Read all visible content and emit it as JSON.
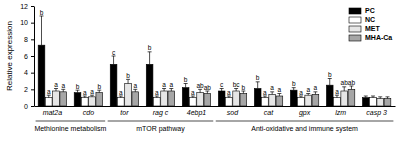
{
  "chart_data": {
    "type": "bar",
    "y_label": "Relative expression",
    "categories": [
      "mat2a",
      "cdo",
      "tor",
      "rag c",
      "4ebp1",
      "sod",
      "cat",
      "gpx",
      "lzm",
      "casp 3"
    ],
    "series": [
      {
        "name": "PC",
        "color": "#000000",
        "values": [
          7.3,
          1.6,
          5.0,
          5.0,
          2.2,
          1.8,
          2.1,
          1.9,
          2.5,
          1.0
        ],
        "errors": [
          3.5,
          0.3,
          1.0,
          1.5,
          0.5,
          0.3,
          0.8,
          0.3,
          0.8,
          0.2
        ],
        "letters": [
          "b",
          "b",
          "c",
          "b",
          "b",
          "c",
          "b",
          "b",
          "b",
          null
        ]
      },
      {
        "name": "NC",
        "color": "#ffffff",
        "values": [
          1.0,
          1.0,
          1.0,
          1.0,
          1.0,
          1.0,
          1.0,
          1.0,
          1.0,
          1.0
        ],
        "errors": [
          0.3,
          0.2,
          0.2,
          0.2,
          0.2,
          0.2,
          0.2,
          0.2,
          0.3,
          0.2
        ],
        "letters": [
          "a",
          "a",
          "a",
          "a",
          "a",
          "a",
          "a",
          "a",
          "a",
          null
        ]
      },
      {
        "name": "MET",
        "color": "#e6e6e6",
        "values": [
          1.8,
          1.1,
          2.7,
          1.8,
          1.6,
          1.8,
          1.4,
          1.3,
          1.8,
          0.9
        ],
        "errors": [
          0.3,
          0.2,
          0.5,
          0.3,
          0.4,
          0.3,
          0.3,
          0.2,
          0.5,
          0.2
        ],
        "letters": [
          "a",
          "a",
          "b",
          "a",
          "ab",
          "bc",
          "a",
          "a",
          "ab",
          null
        ]
      },
      {
        "name": "MHA-Ca",
        "color": "#a6a6a6",
        "values": [
          1.7,
          1.6,
          1.7,
          1.8,
          1.5,
          1.5,
          1.2,
          1.4,
          2.0,
          0.9
        ],
        "errors": [
          0.3,
          0.3,
          0.3,
          0.3,
          0.3,
          0.3,
          0.3,
          0.3,
          0.4,
          0.2
        ],
        "letters": [
          "a",
          "b",
          "a",
          "a",
          "ab",
          "b",
          "a",
          "a",
          "ab",
          null
        ]
      }
    ],
    "groups": [
      {
        "label": "Methionine metabolism",
        "start": 0,
        "end": 1
      },
      {
        "label": "mTOR pathway",
        "start": 2,
        "end": 4
      },
      {
        "label": "Anti-oxidative and immune system",
        "start": 5,
        "end": 9
      }
    ],
    "ylim": [
      0,
      12
    ],
    "yticks": [
      0,
      2,
      4,
      6,
      8,
      10,
      12
    ],
    "legend": "upper right"
  }
}
